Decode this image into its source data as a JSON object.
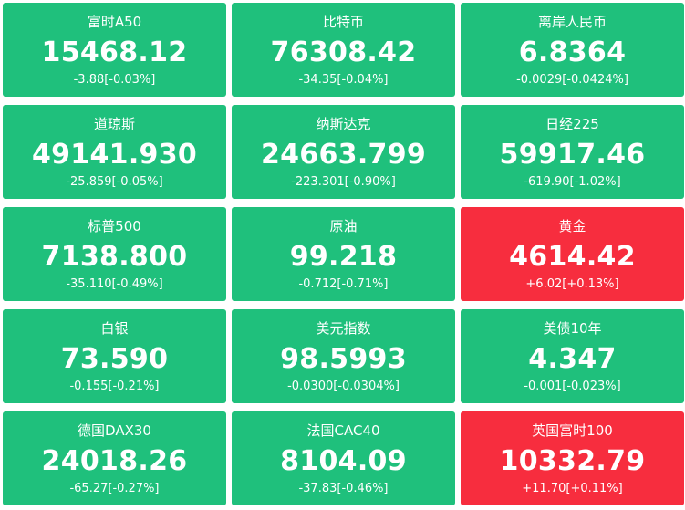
{
  "colors": {
    "down": "#1fc07c",
    "up": "#f72d3e",
    "text": "#ffffff"
  },
  "tiles": [
    {
      "name": "富时A50",
      "price": "15468.12",
      "change": "-3.88[-0.03%]",
      "trend": "down"
    },
    {
      "name": "比特币",
      "price": "76308.42",
      "change": "-34.35[-0.04%]",
      "trend": "down"
    },
    {
      "name": "离岸人民币",
      "price": "6.8364",
      "change": "-0.0029[-0.0424%]",
      "trend": "down"
    },
    {
      "name": "道琼斯",
      "price": "49141.930",
      "change": "-25.859[-0.05%]",
      "trend": "down"
    },
    {
      "name": "纳斯达克",
      "price": "24663.799",
      "change": "-223.301[-0.90%]",
      "trend": "down"
    },
    {
      "name": "日经225",
      "price": "59917.46",
      "change": "-619.90[-1.02%]",
      "trend": "down"
    },
    {
      "name": "标普500",
      "price": "7138.800",
      "change": "-35.110[-0.49%]",
      "trend": "down"
    },
    {
      "name": "原油",
      "price": "99.218",
      "change": "-0.712[-0.71%]",
      "trend": "down"
    },
    {
      "name": "黄金",
      "price": "4614.42",
      "change": "+6.02[+0.13%]",
      "trend": "up"
    },
    {
      "name": "白银",
      "price": "73.590",
      "change": "-0.155[-0.21%]",
      "trend": "down"
    },
    {
      "name": "美元指数",
      "price": "98.5993",
      "change": "-0.0300[-0.0304%]",
      "trend": "down"
    },
    {
      "name": "美债10年",
      "price": "4.347",
      "change": "-0.001[-0.023%]",
      "trend": "down"
    },
    {
      "name": "德国DAX30",
      "price": "24018.26",
      "change": "-65.27[-0.27%]",
      "trend": "down"
    },
    {
      "name": "法国CAC40",
      "price": "8104.09",
      "change": "-37.83[-0.46%]",
      "trend": "down"
    },
    {
      "name": "英国富时100",
      "price": "10332.79",
      "change": "+11.70[+0.11%]",
      "trend": "up"
    }
  ]
}
